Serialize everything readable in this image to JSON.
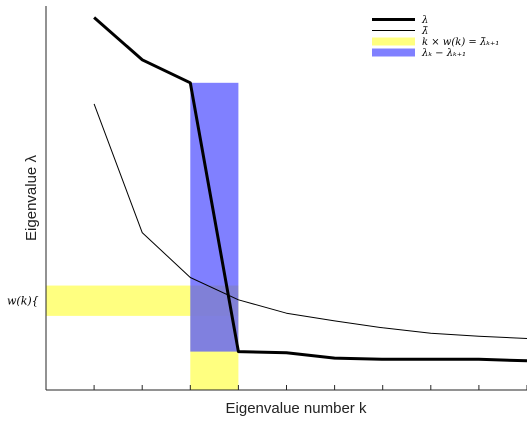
{
  "chart_data": {
    "type": "line",
    "xlabel": "Eigenvalue number k",
    "ylabel": "Eigenvalue λ",
    "xlim": [
      0,
      10
    ],
    "ylim": [
      0,
      1
    ],
    "x": [
      1,
      2,
      3,
      4,
      5,
      6,
      7,
      8,
      9,
      10
    ],
    "series": [
      {
        "name": "λ",
        "values": [
          0.97,
          0.86,
          0.8,
          0.1,
          0.097,
          0.083,
          0.08,
          0.08,
          0.08,
          0.076
        ]
      },
      {
        "name": "λ̄",
        "values": [
          0.745,
          0.41,
          0.293,
          0.235,
          0.2,
          0.18,
          0.162,
          0.148,
          0.14,
          0.134
        ]
      }
    ],
    "highlights": [
      {
        "label": "k × w(k) = λ̄ₖ₊₁",
        "color": "#ffff55",
        "opacity": 0.75,
        "x0": 0,
        "x1": 4,
        "y0": 0.193,
        "y1": 0.272
      },
      {
        "label": "k × w(k) = λ̄ₖ₊₁",
        "color": "#ffff55",
        "opacity": 0.75,
        "x0": 3,
        "x1": 4,
        "y0": 0,
        "y1": 0.272
      },
      {
        "label": "λₖ − λₖ₊₁",
        "color": "#5555ff",
        "opacity": 0.75,
        "x0": 3,
        "x1": 4,
        "y0": 0.1,
        "y1": 0.8
      }
    ],
    "annotation": "w(k){",
    "legend": {
      "position": "top-right",
      "entries": [
        {
          "label": "λ",
          "kind": "line-thick",
          "color": "#000000"
        },
        {
          "label": "λ̄",
          "kind": "line-thin",
          "color": "#000000"
        },
        {
          "label": "k × w(k) = λ̄ₖ₊₁",
          "kind": "patch",
          "color": "#ffff55"
        },
        {
          "label": "λₖ − λₖ₊₁",
          "kind": "patch",
          "color": "#5555ff"
        }
      ]
    }
  }
}
